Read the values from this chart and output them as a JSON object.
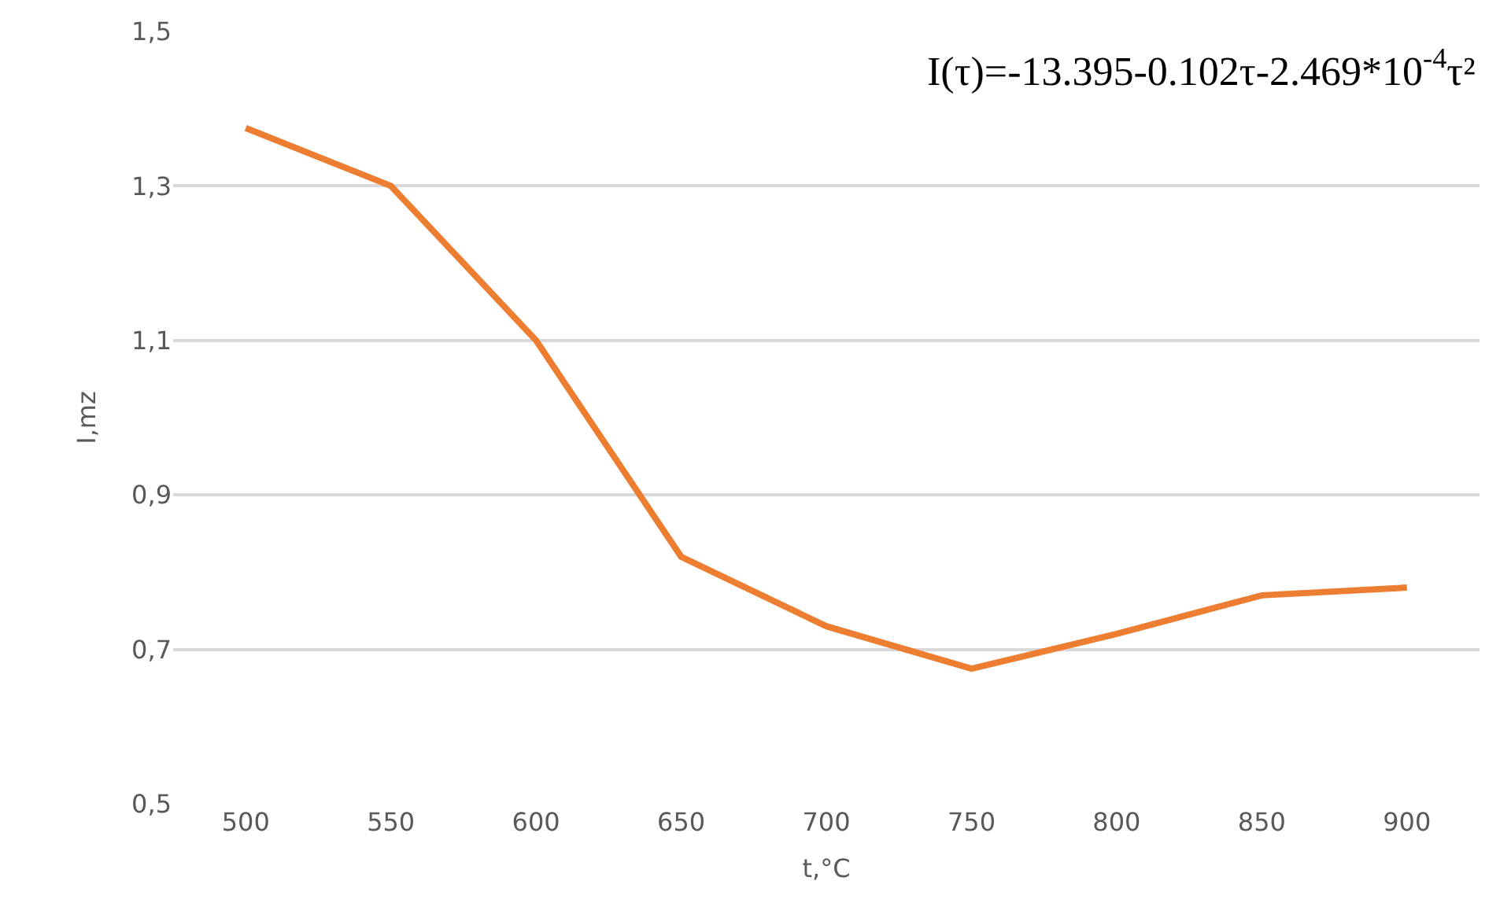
{
  "chart_data": {
    "type": "line",
    "xlabel": "t,°C",
    "ylabel": "I,mz",
    "categories": [
      "500",
      "550",
      "600",
      "650",
      "700",
      "750",
      "800",
      "850",
      "900"
    ],
    "series": [
      {
        "color": "#ed7d31",
        "values": [
          1.375,
          1.3,
          1.1,
          0.82,
          0.73,
          0.675,
          0.72,
          0.77,
          0.78
        ]
      }
    ],
    "ylim": [
      0.5,
      1.5
    ],
    "yticks": [
      {
        "value": 0.5,
        "label": "0,5"
      },
      {
        "value": 0.7,
        "label": "0,7"
      },
      {
        "value": 0.9,
        "label": "0,9"
      },
      {
        "value": 1.1,
        "label": "1,1"
      },
      {
        "value": 1.3,
        "label": "1,3"
      },
      {
        "value": 1.5,
        "label": "1,5"
      }
    ],
    "grid": "y",
    "legend": false,
    "marker": "none",
    "line_style": "solid",
    "annotations": [
      "I(τ)=-13.395-0.102τ-2.469*10$^{-4}$τ²"
    ]
  }
}
